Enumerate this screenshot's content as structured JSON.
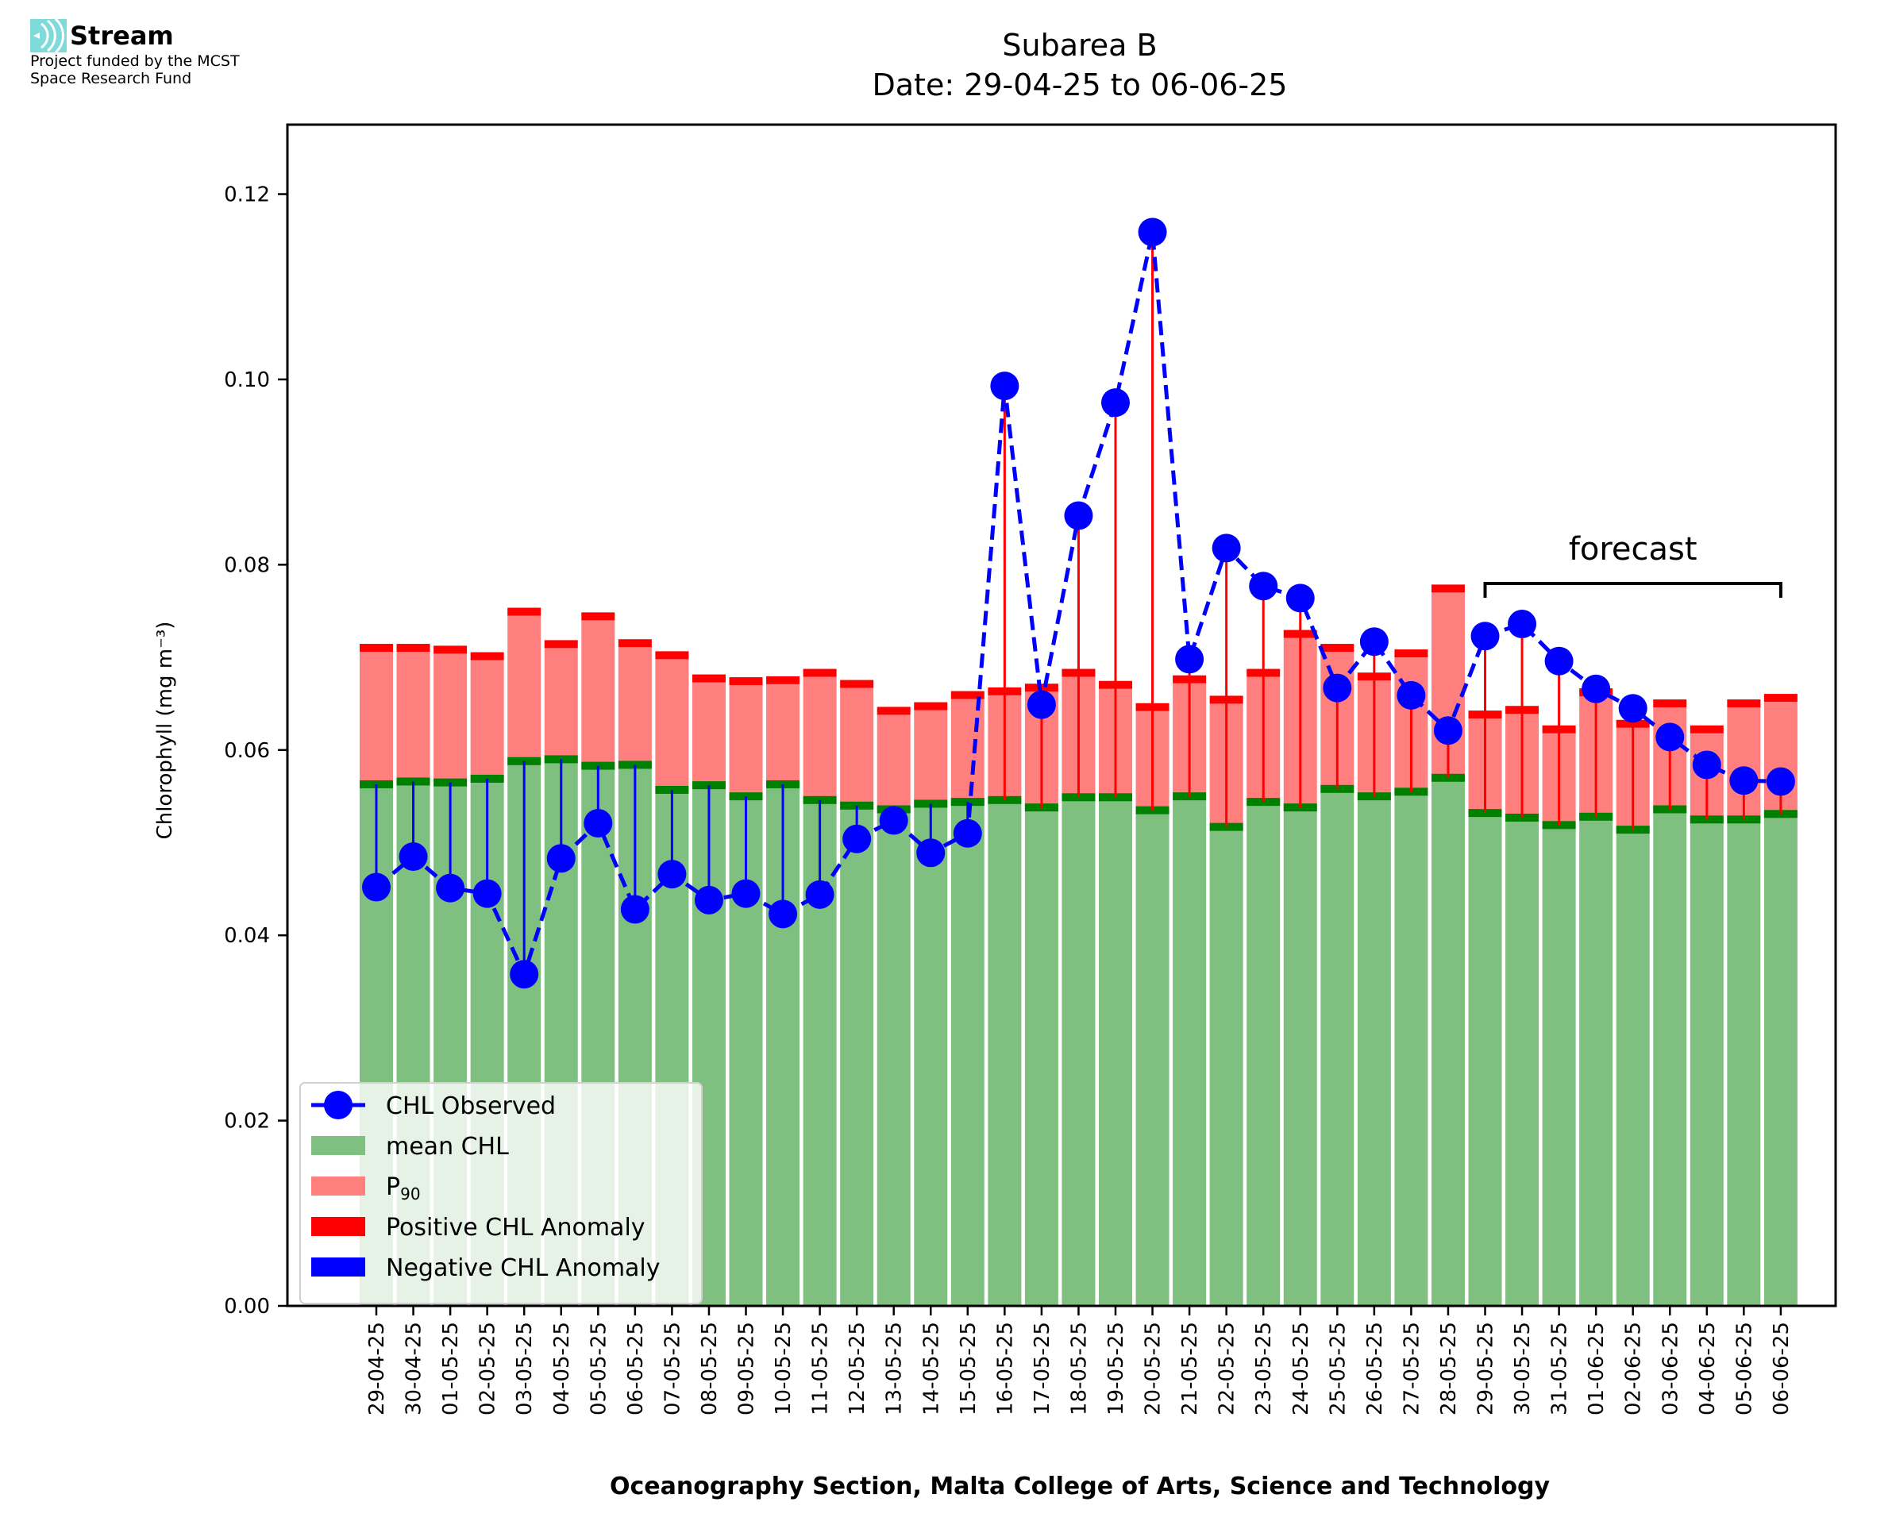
{
  "logo": {
    "name": "Stream",
    "line1": "Project funded by the MCST",
    "line2": "Space Research Fund",
    "color": "#7fdada"
  },
  "chart_data": {
    "type": "bar",
    "title": "Subarea B",
    "subtitle": "Date: 29-04-25 to 06-06-25",
    "xlabel": "Oceanography Section, Malta College of Arts, Science and Technology",
    "ylabel": "Chlorophyll (mg m⁻³)",
    "ylim": [
      0,
      0.1275
    ],
    "yticks": [
      0.0,
      0.02,
      0.04,
      0.06,
      0.08,
      0.1,
      0.12
    ],
    "ytick_labels": [
      "0.00",
      "0.02",
      "0.04",
      "0.06",
      "0.08",
      "0.10",
      "0.12"
    ],
    "grid": false,
    "legend_position": "lower-left",
    "categories": [
      "29-04-25",
      "30-04-25",
      "01-05-25",
      "02-05-25",
      "03-05-25",
      "04-05-25",
      "05-05-25",
      "06-05-25",
      "07-05-25",
      "08-05-25",
      "09-05-25",
      "10-05-25",
      "11-05-25",
      "12-05-25",
      "13-05-25",
      "14-05-25",
      "15-05-25",
      "16-05-25",
      "17-05-25",
      "18-05-25",
      "19-05-25",
      "20-05-25",
      "21-05-25",
      "22-05-25",
      "23-05-25",
      "24-05-25",
      "25-05-25",
      "26-05-25",
      "27-05-25",
      "28-05-25",
      "29-05-25",
      "30-05-25",
      "31-05-25",
      "01-06-25",
      "02-06-25",
      "03-06-25",
      "04-06-25",
      "05-06-25",
      "06-06-25"
    ],
    "series": [
      {
        "name": "mean CHL",
        "color": "#7fbf7f",
        "marker_color": "#008000",
        "values": [
          0.0563,
          0.0566,
          0.0565,
          0.0569,
          0.0588,
          0.059,
          0.0583,
          0.0584,
          0.0557,
          0.0562,
          0.055,
          0.0563,
          0.0546,
          0.054,
          0.0536,
          0.0542,
          0.0544,
          0.0546,
          0.0538,
          0.0549,
          0.0549,
          0.0535,
          0.055,
          0.0517,
          0.0544,
          0.0538,
          0.0558,
          0.055,
          0.0555,
          0.057,
          0.0532,
          0.0527,
          0.0519,
          0.0528,
          0.0514,
          0.0536,
          0.0525,
          0.0525,
          0.0531
        ]
      },
      {
        "name": "P90",
        "color": "#ff7f7f",
        "marker_color": "#ff0000",
        "values": [
          0.0706,
          0.0706,
          0.0704,
          0.0697,
          0.0745,
          0.071,
          0.074,
          0.0711,
          0.0698,
          0.0673,
          0.067,
          0.0671,
          0.0679,
          0.0667,
          0.0638,
          0.0643,
          0.0655,
          0.0659,
          0.0663,
          0.0679,
          0.0666,
          0.0642,
          0.0672,
          0.065,
          0.0679,
          0.0721,
          0.0706,
          0.0675,
          0.07,
          0.077,
          0.0634,
          0.0639,
          0.0618,
          0.0658,
          0.0624,
          0.0646,
          0.0618,
          0.0646,
          0.0652
        ]
      },
      {
        "name": "CHL Observed",
        "color": "#0000ff",
        "values": [
          0.0452,
          0.0485,
          0.0451,
          0.0445,
          0.0358,
          0.0483,
          0.0521,
          0.0428,
          0.0466,
          0.0438,
          0.0445,
          0.0423,
          0.0444,
          0.0504,
          0.0524,
          0.0489,
          0.051,
          0.0993,
          0.0649,
          0.0853,
          0.0975,
          0.1159,
          0.0698,
          0.0818,
          0.0777,
          0.0764,
          0.0667,
          0.0717,
          0.0659,
          0.0621,
          0.0723,
          0.0736,
          0.0696,
          0.0666,
          0.0645,
          0.0614,
          0.0584,
          0.0567,
          0.0566
        ]
      }
    ],
    "legend": [
      {
        "label": "CHL Observed",
        "kind": "line-marker",
        "color": "#0000ff"
      },
      {
        "label": "mean CHL",
        "kind": "patch",
        "color": "#7fbf7f"
      },
      {
        "label": "P",
        "sub": "90",
        "kind": "patch",
        "color": "#ff7f7f"
      },
      {
        "label": "Positive CHL Anomaly",
        "kind": "patch",
        "color": "#ff0000"
      },
      {
        "label": "Negative CHL Anomaly",
        "kind": "patch",
        "color": "#0000ff"
      }
    ],
    "annotation": {
      "text": "forecast",
      "from": "29-05-25",
      "to": "06-06-25"
    },
    "anomaly_colors": {
      "positive": "#ff0000",
      "negative": "#0000ff"
    }
  }
}
